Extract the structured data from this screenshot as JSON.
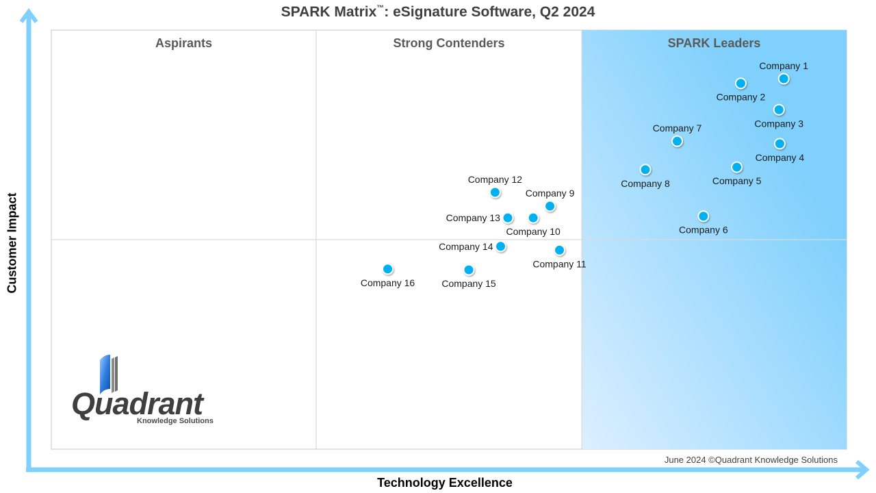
{
  "chart_data": {
    "type": "scatter",
    "title": "SPARK Matrix",
    "title_trademark": "™",
    "title_suffix": ": eSignature Software, Q2 2024",
    "xlabel": "Technology Excellence",
    "ylabel": "Customer Impact",
    "xlim": [
      0,
      100
    ],
    "ylim": [
      0,
      100
    ],
    "grid": false,
    "quadrants": [
      {
        "name": "Aspirants",
        "x_range": [
          0,
          33.3
        ]
      },
      {
        "name": "Strong Contenders",
        "x_range": [
          33.3,
          66.7
        ]
      },
      {
        "name": "SPARK Leaders",
        "x_range": [
          66.7,
          100
        ]
      }
    ],
    "horizontal_divider_y": 50,
    "points": [
      {
        "label": "Company 1",
        "x": 92.1,
        "y": 88.4,
        "label_pos": "above"
      },
      {
        "label": "Company 2",
        "x": 86.7,
        "y": 87.3,
        "label_pos": "below"
      },
      {
        "label": "Company 3",
        "x": 91.5,
        "y": 81.0,
        "label_pos": "below"
      },
      {
        "label": "Company 4",
        "x": 91.6,
        "y": 72.9,
        "label_pos": "below"
      },
      {
        "label": "Company 5",
        "x": 86.2,
        "y": 67.3,
        "label_pos": "below"
      },
      {
        "label": "Company 6",
        "x": 82.0,
        "y": 55.6,
        "label_pos": "below"
      },
      {
        "label": "Company 7",
        "x": 78.7,
        "y": 73.5,
        "label_pos": "above"
      },
      {
        "label": "Company 8",
        "x": 74.7,
        "y": 66.7,
        "label_pos": "below"
      },
      {
        "label": "Company 9",
        "x": 62.7,
        "y": 58.0,
        "label_pos": "above"
      },
      {
        "label": "Company 10",
        "x": 60.6,
        "y": 55.2,
        "label_pos": "below"
      },
      {
        "label": "Company 11",
        "x": 63.9,
        "y": 47.5,
        "label_pos": "below"
      },
      {
        "label": "Company 12",
        "x": 55.8,
        "y": 61.3,
        "label_pos": "above"
      },
      {
        "label": "Company 13",
        "x": 57.4,
        "y": 55.2,
        "label_pos": "left"
      },
      {
        "label": "Company 14",
        "x": 56.5,
        "y": 48.4,
        "label_pos": "left"
      },
      {
        "label": "Company 15",
        "x": 52.5,
        "y": 42.8,
        "label_pos": "below"
      },
      {
        "label": "Company 16",
        "x": 42.3,
        "y": 43.0,
        "label_pos": "below"
      }
    ],
    "colors": {
      "point": "#00b0f0",
      "point_border": "#ffffff",
      "axis_arrow": "#7fd0fc",
      "leaders_gradient_start": "#dcefff",
      "leaders_gradient_end": "#7fd0fc",
      "divider": "#d9d9d9"
    }
  },
  "footer": {
    "copyright": "June 2024 ©Quadrant Knowledge Solutions"
  },
  "logo": {
    "wordmark": "Quadrant",
    "subtitle": "Knowledge Solutions"
  }
}
